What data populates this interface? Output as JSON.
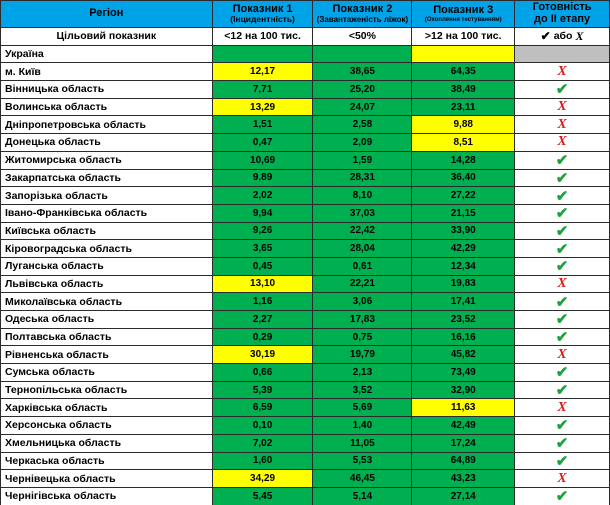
{
  "colors": {
    "header_bg": "#00A2E8",
    "green": "#00B050",
    "yellow": "#FFFF00",
    "gray": "#BFBFBF",
    "check_green": "#1CA33C",
    "cross_red": "#E01B1B"
  },
  "symbols": {
    "check": "✔",
    "cross": "X"
  },
  "table": {
    "header": {
      "region": "Регіон",
      "col1_title": "Показник 1",
      "col1_sub": "(Інцидентність)",
      "col2_title": "Показник 2",
      "col2_sub": "(Завантаженість ліжок)",
      "col3_title": "Показник 3",
      "col3_sub": "(Охоплення тестуванням)",
      "ready_line1": "Готовність",
      "ready_line2": "до ІІ етапу"
    },
    "target_row": {
      "label": "Цільовий показник",
      "col1": "<12 на 100 тис.",
      "col2": "<50%",
      "col3": ">12 на 100 тис.",
      "ready_check": "✔",
      "ready_text": "або",
      "ready_x": "X"
    },
    "ukraine_row": {
      "label": "Україна",
      "c1": "green",
      "c2": "green",
      "c3": "yellow",
      "ready_bg": "gray"
    },
    "rows": [
      {
        "region": "м. Київ",
        "v1": "12,17",
        "c1": "yellow",
        "v2": "38,65",
        "c2": "green",
        "v3": "64,35",
        "c3": "green",
        "ready": false
      },
      {
        "region": "Вінницька область",
        "v1": "7,71",
        "c1": "green",
        "v2": "25,20",
        "c2": "green",
        "v3": "38,49",
        "c3": "green",
        "ready": true
      },
      {
        "region": "Волинська область",
        "v1": "13,29",
        "c1": "yellow",
        "v2": "24,07",
        "c2": "green",
        "v3": "23,11",
        "c3": "green",
        "ready": false
      },
      {
        "region": "Дніпропетровська область",
        "v1": "1,51",
        "c1": "green",
        "v2": "2,58",
        "c2": "green",
        "v3": "9,88",
        "c3": "yellow",
        "ready": false
      },
      {
        "region": "Донецька область",
        "v1": "0,47",
        "c1": "green",
        "v2": "2,09",
        "c2": "green",
        "v3": "8,51",
        "c3": "yellow",
        "ready": false
      },
      {
        "region": "Житомирська область",
        "v1": "10,69",
        "c1": "green",
        "v2": "1,59",
        "c2": "green",
        "v3": "14,28",
        "c3": "green",
        "ready": true
      },
      {
        "region": "Закарпатська область",
        "v1": "9,89",
        "c1": "green",
        "v2": "28,31",
        "c2": "green",
        "v3": "36,40",
        "c3": "green",
        "ready": true
      },
      {
        "region": "Запорізька область",
        "v1": "2,02",
        "c1": "green",
        "v2": "8,10",
        "c2": "green",
        "v3": "27,22",
        "c3": "green",
        "ready": true
      },
      {
        "region": "Івано-Франківська область",
        "v1": "9,94",
        "c1": "green",
        "v2": "37,03",
        "c2": "green",
        "v3": "21,15",
        "c3": "green",
        "ready": true
      },
      {
        "region": "Київська область",
        "v1": "9,26",
        "c1": "green",
        "v2": "22,42",
        "c2": "green",
        "v3": "33,90",
        "c3": "green",
        "ready": true
      },
      {
        "region": "Кіровоградська область",
        "v1": "3,65",
        "c1": "green",
        "v2": "28,04",
        "c2": "green",
        "v3": "42,29",
        "c3": "green",
        "ready": true
      },
      {
        "region": "Луганська область",
        "v1": "0,45",
        "c1": "green",
        "v2": "0,61",
        "c2": "green",
        "v3": "12,34",
        "c3": "green",
        "ready": true
      },
      {
        "region": "Львівська область",
        "v1": "13,10",
        "c1": "yellow",
        "v2": "22,21",
        "c2": "green",
        "v3": "19,83",
        "c3": "green",
        "ready": false
      },
      {
        "region": "Миколаївська область",
        "v1": "1,16",
        "c1": "green",
        "v2": "3,06",
        "c2": "green",
        "v3": "17,41",
        "c3": "green",
        "ready": true
      },
      {
        "region": "Одеська область",
        "v1": "2,27",
        "c1": "green",
        "v2": "17,83",
        "c2": "green",
        "v3": "23,52",
        "c3": "green",
        "ready": true
      },
      {
        "region": "Полтавська область",
        "v1": "0,29",
        "c1": "green",
        "v2": "0,75",
        "c2": "green",
        "v3": "16,16",
        "c3": "green",
        "ready": true
      },
      {
        "region": "Рівненська область",
        "v1": "30,19",
        "c1": "yellow",
        "v2": "19,79",
        "c2": "green",
        "v3": "45,82",
        "c3": "green",
        "ready": false
      },
      {
        "region": "Сумська область",
        "v1": "0,66",
        "c1": "green",
        "v2": "2,13",
        "c2": "green",
        "v3": "73,49",
        "c3": "green",
        "ready": true
      },
      {
        "region": "Тернопільська область",
        "v1": "5,39",
        "c1": "green",
        "v2": "3,52",
        "c2": "green",
        "v3": "32,90",
        "c3": "green",
        "ready": true
      },
      {
        "region": "Харківська область",
        "v1": "6,59",
        "c1": "green",
        "v2": "5,69",
        "c2": "green",
        "v3": "11,63",
        "c3": "yellow",
        "ready": false
      },
      {
        "region": "Херсонська область",
        "v1": "0,10",
        "c1": "green",
        "v2": "1,40",
        "c2": "green",
        "v3": "42,49",
        "c3": "green",
        "ready": true
      },
      {
        "region": "Хмельницька область",
        "v1": "7,02",
        "c1": "green",
        "v2": "11,05",
        "c2": "green",
        "v3": "17,24",
        "c3": "green",
        "ready": true
      },
      {
        "region": "Черкаська область",
        "v1": "1,60",
        "c1": "green",
        "v2": "5,53",
        "c2": "green",
        "v3": "64,89",
        "c3": "green",
        "ready": true
      },
      {
        "region": "Чернівецька область",
        "v1": "34,29",
        "c1": "yellow",
        "v2": "46,45",
        "c2": "green",
        "v3": "43,23",
        "c3": "green",
        "ready": false
      },
      {
        "region": "Чернігівська область",
        "v1": "5,45",
        "c1": "green",
        "v2": "5,14",
        "c2": "green",
        "v3": "27,14",
        "c3": "green",
        "ready": true
      }
    ]
  }
}
